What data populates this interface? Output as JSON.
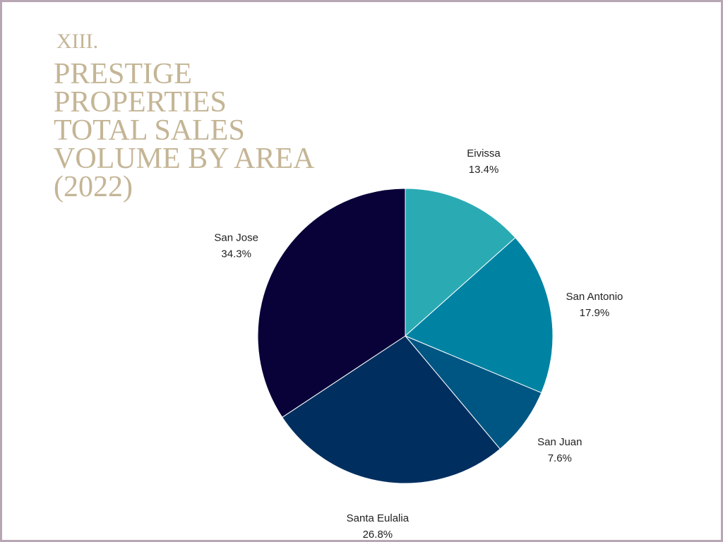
{
  "chart_data": {
    "type": "pie",
    "section": "XIII.",
    "title": [
      "PRESTIGE",
      "PROPERTIES",
      "TOTAL SALES",
      "VOLUME BY AREA",
      "(2022)"
    ],
    "categories": [
      "Eivissa",
      "San Antonio",
      "San Juan",
      "Santa Eulalia",
      "San Jose"
    ],
    "values": [
      13.4,
      17.9,
      7.6,
      26.8,
      34.3
    ],
    "value_labels": [
      "13.4%",
      "17.9%",
      "7.6%",
      "26.8%",
      "34.3%"
    ],
    "colors": [
      "#2aabb4",
      "#0083a3",
      "#005683",
      "#002f5f",
      "#080238"
    ]
  }
}
